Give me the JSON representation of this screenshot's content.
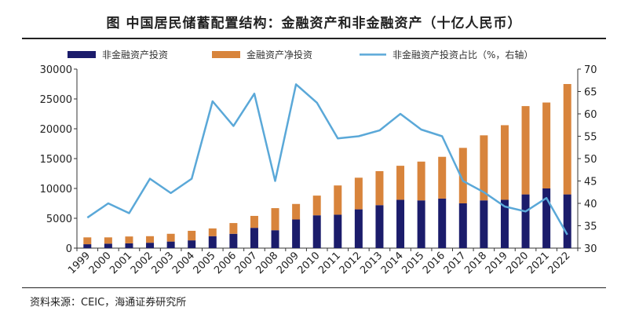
{
  "title": "图  中国居民储蓄配置结构：金融资产和非金融资产（十亿人民币）",
  "source": "资料来源：CEIC，海通证券研究所",
  "colors": {
    "nonfin": "#1b1c6b",
    "fin": "#d8843c",
    "line": "#5aa8d8",
    "axis": "#333333"
  },
  "chart_data": {
    "type": "bar",
    "stacked": true,
    "categories": [
      "1999",
      "2000",
      "2001",
      "2002",
      "2003",
      "2004",
      "2005",
      "2006",
      "2007",
      "2008",
      "2009",
      "2010",
      "2011",
      "2012",
      "2013",
      "2014",
      "2015",
      "2016",
      "2017",
      "2018",
      "2019",
      "2020",
      "2021",
      "2022"
    ],
    "series": [
      {
        "name": "非金融资产投资",
        "axis": "left",
        "type": "bar",
        "values": [
          650,
          750,
          800,
          900,
          1100,
          1300,
          2000,
          2400,
          3400,
          3000,
          4800,
          5500,
          5600,
          6500,
          7200,
          8100,
          8000,
          8300,
          7500,
          8000,
          8100,
          9000,
          10000,
          9000
        ]
      },
      {
        "name": "金融资产净投资",
        "axis": "left",
        "type": "bar",
        "values": [
          1150,
          1050,
          1150,
          1100,
          1300,
          1600,
          1300,
          1800,
          2000,
          3700,
          2600,
          3300,
          4900,
          5300,
          5700,
          5700,
          6500,
          7000,
          9300,
          10900,
          12500,
          14800,
          14400,
          18500
        ]
      },
      {
        "name": "非金融资产投资占比（%，右轴）",
        "axis": "right",
        "type": "line",
        "values": [
          36.8,
          40,
          37.8,
          45.5,
          42.3,
          45.5,
          62.8,
          57.3,
          64.5,
          45.0,
          66.6,
          62.5,
          54.5,
          55.0,
          56.3,
          60.0,
          56.5,
          55.0,
          45.0,
          42.5,
          39.3,
          38.2,
          41.2,
          33.0
        ]
      }
    ],
    "yaxis_left": {
      "min": 0,
      "max": 30000,
      "ticks": [
        0,
        5000,
        10000,
        15000,
        20000,
        25000,
        30000
      ]
    },
    "yaxis_right": {
      "min": 30,
      "max": 70,
      "ticks": [
        30,
        35,
        40,
        45,
        50,
        55,
        60,
        65,
        70
      ]
    },
    "legend": [
      "非金融资产投资",
      "金融资产净投资",
      "非金融资产投资占比（%，右轴）"
    ],
    "legend_position": "top",
    "grid": false
  }
}
